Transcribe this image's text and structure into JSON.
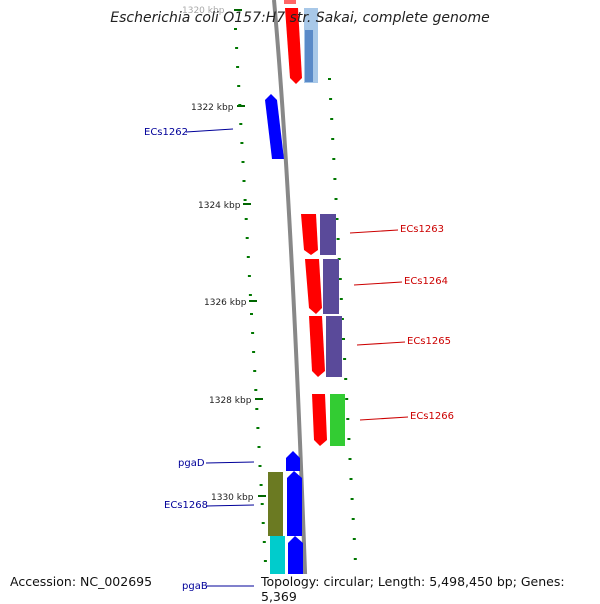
{
  "title": "Escherichia coli O157:H7 str. Sakai, complete genome",
  "footer": {
    "accession": "Accession: NC_002695",
    "topology": "Topology: circular; Length: 5,498,450 bp; Genes: 5,369"
  },
  "ticks": [
    "1320 kbp",
    "1322 kbp",
    "1324 kbp",
    "1326 kbp",
    "1328 kbp",
    "1330 kbp"
  ],
  "genes_forward": [
    {
      "id": "unlabeled-top",
      "label": ""
    },
    {
      "id": "ECs1262",
      "label": "ECs1262"
    },
    {
      "id": "pgaD",
      "label": "pgaD"
    },
    {
      "id": "ECs1268",
      "label": "ECs1268"
    },
    {
      "id": "pgaB",
      "label": "pgaB"
    }
  ],
  "genes_reverse": [
    {
      "id": "ECs1263",
      "label": "ECs1263"
    },
    {
      "id": "ECs1264",
      "label": "ECs1264"
    },
    {
      "id": "ECs1265",
      "label": "ECs1265"
    },
    {
      "id": "ECs1266",
      "label": "ECs1266"
    }
  ],
  "colors": {
    "backbone": "#808080",
    "forward_cds": "#0000ff",
    "reverse_cds": "#ff0000",
    "label_forward": "#000099",
    "label_reverse": "#cc0000",
    "gc_dots": "#007700",
    "cog_slate": "#5a4a9a",
    "cog_green": "#33cc33",
    "cog_olive": "#6b7a22",
    "cog_cyan": "#00cccc",
    "cog_steelblue": "#5a8ac8"
  }
}
